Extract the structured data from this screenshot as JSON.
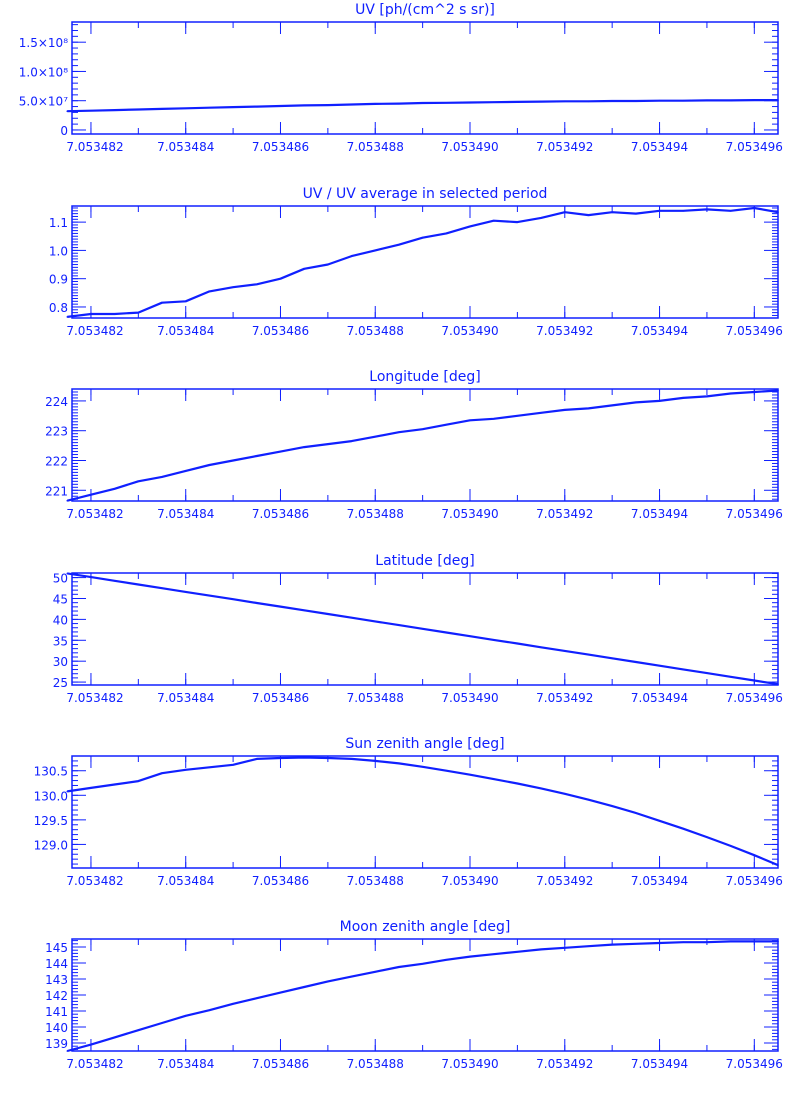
{
  "color": "#1020ff",
  "chart_data": [
    {
      "type": "line",
      "title": "UV [ph/(cm^2 s sr)]",
      "xlim": [
        7.0534816,
        7.0534965
      ],
      "ylim": [
        -6900000,
        184500000
      ],
      "x_ticks": [
        7.053482,
        7.053484,
        7.053486,
        7.053488,
        7.05349,
        7.053492,
        7.053494,
        7.053496
      ],
      "x_tick_labels": [
        "7.053482",
        "7.053484",
        "7.053486",
        "7.053488",
        "7.053490",
        "7.053492",
        "7.053494",
        "7.053496"
      ],
      "x_minor_step": 1e-06,
      "y_ticks": [
        0,
        50000000,
        100000000,
        150000000
      ],
      "y_tick_labels": [
        "0",
        "5.0×10⁷",
        "1.0×10⁸",
        "1.5×10⁸"
      ],
      "y_minor_step": 10000000,
      "x": [
        7.0534815,
        7.053482,
        7.0534825,
        7.053483,
        7.0534835,
        7.053484,
        7.0534845,
        7.053485,
        7.0534855,
        7.053486,
        7.0534865,
        7.053487,
        7.0534875,
        7.053488,
        7.0534885,
        7.053489,
        7.0534895,
        7.05349,
        7.0534905,
        7.053491,
        7.0534915,
        7.053492,
        7.0534925,
        7.053493,
        7.0534935,
        7.053494,
        7.0534945,
        7.053495,
        7.0534955,
        7.053496,
        7.0534965
      ],
      "y": [
        32000000,
        33000000,
        34000000,
        35000000,
        36000000,
        37000000,
        38000000,
        39000000,
        40000000,
        41000000,
        42000000,
        42500000,
        43500000,
        44500000,
        45000000,
        46000000,
        46500000,
        47000000,
        47500000,
        48000000,
        48500000,
        49000000,
        49000000,
        49500000,
        49500000,
        50000000,
        50000000,
        50500000,
        50500000,
        51000000,
        51000000
      ]
    },
    {
      "type": "line",
      "title": "UV / UV average in selected period",
      "xlim": [
        7.0534816,
        7.0534965
      ],
      "ylim": [
        0.761,
        1.157
      ],
      "x_ticks": [
        7.053482,
        7.053484,
        7.053486,
        7.053488,
        7.05349,
        7.053492,
        7.053494,
        7.053496
      ],
      "x_tick_labels": [
        "7.053482",
        "7.053484",
        "7.053486",
        "7.053488",
        "7.053490",
        "7.053492",
        "7.053494",
        "7.053496"
      ],
      "x_minor_step": 1e-06,
      "y_ticks": [
        0.8,
        0.9,
        1.0,
        1.1
      ],
      "y_tick_labels": [
        "0.8",
        "0.9",
        "1.0",
        "1.1"
      ],
      "y_minor_step": 0.01,
      "x": [
        7.0534815,
        7.053482,
        7.0534825,
        7.053483,
        7.0534835,
        7.053484,
        7.0534845,
        7.053485,
        7.0534855,
        7.053486,
        7.0534865,
        7.053487,
        7.0534875,
        7.053488,
        7.0534885,
        7.053489,
        7.0534895,
        7.05349,
        7.0534905,
        7.053491,
        7.0534915,
        7.053492,
        7.0534925,
        7.053493,
        7.0534935,
        7.053494,
        7.0534945,
        7.053495,
        7.0534955,
        7.053496,
        7.0534965
      ],
      "y": [
        0.765,
        0.775,
        0.775,
        0.78,
        0.815,
        0.82,
        0.855,
        0.87,
        0.88,
        0.9,
        0.935,
        0.95,
        0.98,
        1.0,
        1.02,
        1.045,
        1.06,
        1.085,
        1.105,
        1.1,
        1.115,
        1.135,
        1.125,
        1.135,
        1.13,
        1.14,
        1.14,
        1.145,
        1.14,
        1.15,
        1.135
      ]
    },
    {
      "type": "line",
      "title": "Longitude [deg]",
      "xlim": [
        7.0534816,
        7.0534965
      ],
      "ylim": [
        220.64,
        224.4
      ],
      "x_ticks": [
        7.053482,
        7.053484,
        7.053486,
        7.053488,
        7.05349,
        7.053492,
        7.053494,
        7.053496
      ],
      "x_tick_labels": [
        "7.053482",
        "7.053484",
        "7.053486",
        "7.053488",
        "7.053490",
        "7.053492",
        "7.053494",
        "7.053496"
      ],
      "x_minor_step": 1e-06,
      "y_ticks": [
        221,
        222,
        223,
        224
      ],
      "y_tick_labels": [
        "221",
        "222",
        "223",
        "224"
      ],
      "y_minor_step": 0.1,
      "x": [
        7.0534815,
        7.053482,
        7.0534825,
        7.053483,
        7.0534835,
        7.053484,
        7.0534845,
        7.053485,
        7.0534855,
        7.053486,
        7.0534865,
        7.053487,
        7.0534875,
        7.053488,
        7.0534885,
        7.053489,
        7.0534895,
        7.05349,
        7.0534905,
        7.053491,
        7.0534915,
        7.053492,
        7.0534925,
        7.053493,
        7.0534935,
        7.053494,
        7.0534945,
        7.053495,
        7.0534955,
        7.053496,
        7.0534965
      ],
      "y": [
        220.65,
        220.85,
        221.05,
        221.3,
        221.45,
        221.65,
        221.85,
        222.0,
        222.15,
        222.3,
        222.45,
        222.55,
        222.65,
        222.8,
        222.95,
        223.05,
        223.2,
        223.35,
        223.4,
        223.5,
        223.6,
        223.7,
        223.75,
        223.85,
        223.95,
        224.0,
        224.1,
        224.15,
        224.25,
        224.3,
        224.35
      ]
    },
    {
      "type": "line",
      "title": "Latitude [deg]",
      "xlim": [
        7.0534816,
        7.0534965
      ],
      "ylim": [
        24.3,
        51.1
      ],
      "x_ticks": [
        7.053482,
        7.053484,
        7.053486,
        7.053488,
        7.05349,
        7.053492,
        7.053494,
        7.053496
      ],
      "x_tick_labels": [
        "7.053482",
        "7.053484",
        "7.053486",
        "7.053488",
        "7.053490",
        "7.053492",
        "7.053494",
        "7.053496"
      ],
      "x_minor_step": 1e-06,
      "y_ticks": [
        25,
        30,
        35,
        40,
        45,
        50
      ],
      "y_tick_labels": [
        "25",
        "30",
        "35",
        "40",
        "45",
        "50"
      ],
      "y_minor_step": 1,
      "x": [
        7.0534815,
        7.053482,
        7.0534825,
        7.053483,
        7.0534835,
        7.053484,
        7.0534845,
        7.053485,
        7.0534855,
        7.053486,
        7.0534865,
        7.053487,
        7.0534875,
        7.053488,
        7.0534885,
        7.053489,
        7.0534895,
        7.05349,
        7.0534905,
        7.053491,
        7.0534915,
        7.053492,
        7.0534925,
        7.053493,
        7.0534935,
        7.053494,
        7.0534945,
        7.053495,
        7.0534955,
        7.053496,
        7.0534965
      ],
      "y": [
        51.0,
        50.12,
        49.23,
        48.35,
        47.47,
        46.58,
        45.7,
        44.82,
        43.93,
        43.05,
        42.17,
        41.28,
        40.4,
        39.52,
        38.63,
        37.75,
        36.87,
        35.98,
        35.1,
        34.22,
        33.33,
        32.45,
        31.57,
        30.68,
        29.8,
        28.92,
        28.03,
        27.15,
        26.27,
        25.38,
        24.5
      ]
    },
    {
      "type": "line",
      "title": "Sun zenith angle [deg]",
      "xlim": [
        7.0534816,
        7.0534965
      ],
      "ylim": [
        128.52,
        130.8
      ],
      "x_ticks": [
        7.053482,
        7.053484,
        7.053486,
        7.053488,
        7.05349,
        7.053492,
        7.053494,
        7.053496
      ],
      "x_tick_labels": [
        "7.053482",
        "7.053484",
        "7.053486",
        "7.053488",
        "7.053490",
        "7.053492",
        "7.053494",
        "7.053496"
      ],
      "x_minor_step": 1e-06,
      "y_ticks": [
        129.0,
        129.5,
        130.0,
        130.5
      ],
      "y_tick_labels": [
        "129.0",
        "129.5",
        "130.0",
        "130.5"
      ],
      "y_minor_step": 0.1,
      "x": [
        7.0534815,
        7.053482,
        7.0534825,
        7.053483,
        7.0534835,
        7.053484,
        7.0534845,
        7.053485,
        7.0534855,
        7.053486,
        7.0534865,
        7.053487,
        7.0534875,
        7.053488,
        7.0534885,
        7.053489,
        7.0534895,
        7.05349,
        7.0534905,
        7.053491,
        7.0534915,
        7.053492,
        7.0534925,
        7.053493,
        7.0534935,
        7.053494,
        7.0534945,
        7.053495,
        7.0534955,
        7.053496,
        7.0534965
      ],
      "y": [
        130.08,
        130.15,
        130.22,
        130.29,
        130.45,
        130.52,
        130.57,
        130.62,
        130.74,
        130.76,
        130.77,
        130.76,
        130.74,
        130.7,
        130.65,
        130.58,
        130.5,
        130.42,
        130.33,
        130.24,
        130.14,
        130.03,
        129.91,
        129.78,
        129.64,
        129.48,
        129.32,
        129.15,
        128.97,
        128.78,
        128.58
      ]
    },
    {
      "type": "line",
      "title": "Moon zenith angle [deg]",
      "xlim": [
        7.0534816,
        7.0534965
      ],
      "ylim": [
        138.5,
        145.5
      ],
      "x_ticks": [
        7.053482,
        7.053484,
        7.053486,
        7.053488,
        7.05349,
        7.053492,
        7.053494,
        7.053496
      ],
      "x_tick_labels": [
        "7.053482",
        "7.053484",
        "7.053486",
        "7.053488",
        "7.053490",
        "7.053492",
        "7.053494",
        "7.053496"
      ],
      "x_minor_step": 1e-06,
      "y_ticks": [
        139,
        140,
        141,
        142,
        143,
        144,
        145
      ],
      "y_tick_labels": [
        "139",
        "140",
        "141",
        "142",
        "143",
        "144",
        "145"
      ],
      "y_minor_step": 0.2,
      "x": [
        7.0534815,
        7.053482,
        7.0534825,
        7.053483,
        7.0534835,
        7.053484,
        7.0534845,
        7.053485,
        7.0534855,
        7.053486,
        7.0534865,
        7.053487,
        7.0534875,
        7.053488,
        7.0534885,
        7.053489,
        7.0534895,
        7.05349,
        7.0534905,
        7.053491,
        7.0534915,
        7.053492,
        7.0534925,
        7.053493,
        7.0534935,
        7.053494,
        7.0534945,
        7.053495,
        7.0534955,
        7.053496,
        7.0534965
      ],
      "y": [
        138.5,
        138.9,
        139.35,
        139.8,
        140.25,
        140.7,
        141.05,
        141.45,
        141.8,
        142.15,
        142.5,
        142.85,
        143.15,
        143.45,
        143.75,
        143.95,
        144.2,
        144.4,
        144.55,
        144.7,
        144.85,
        144.95,
        145.05,
        145.15,
        145.2,
        145.25,
        145.3,
        145.3,
        145.35,
        145.35,
        145.35
      ]
    }
  ]
}
